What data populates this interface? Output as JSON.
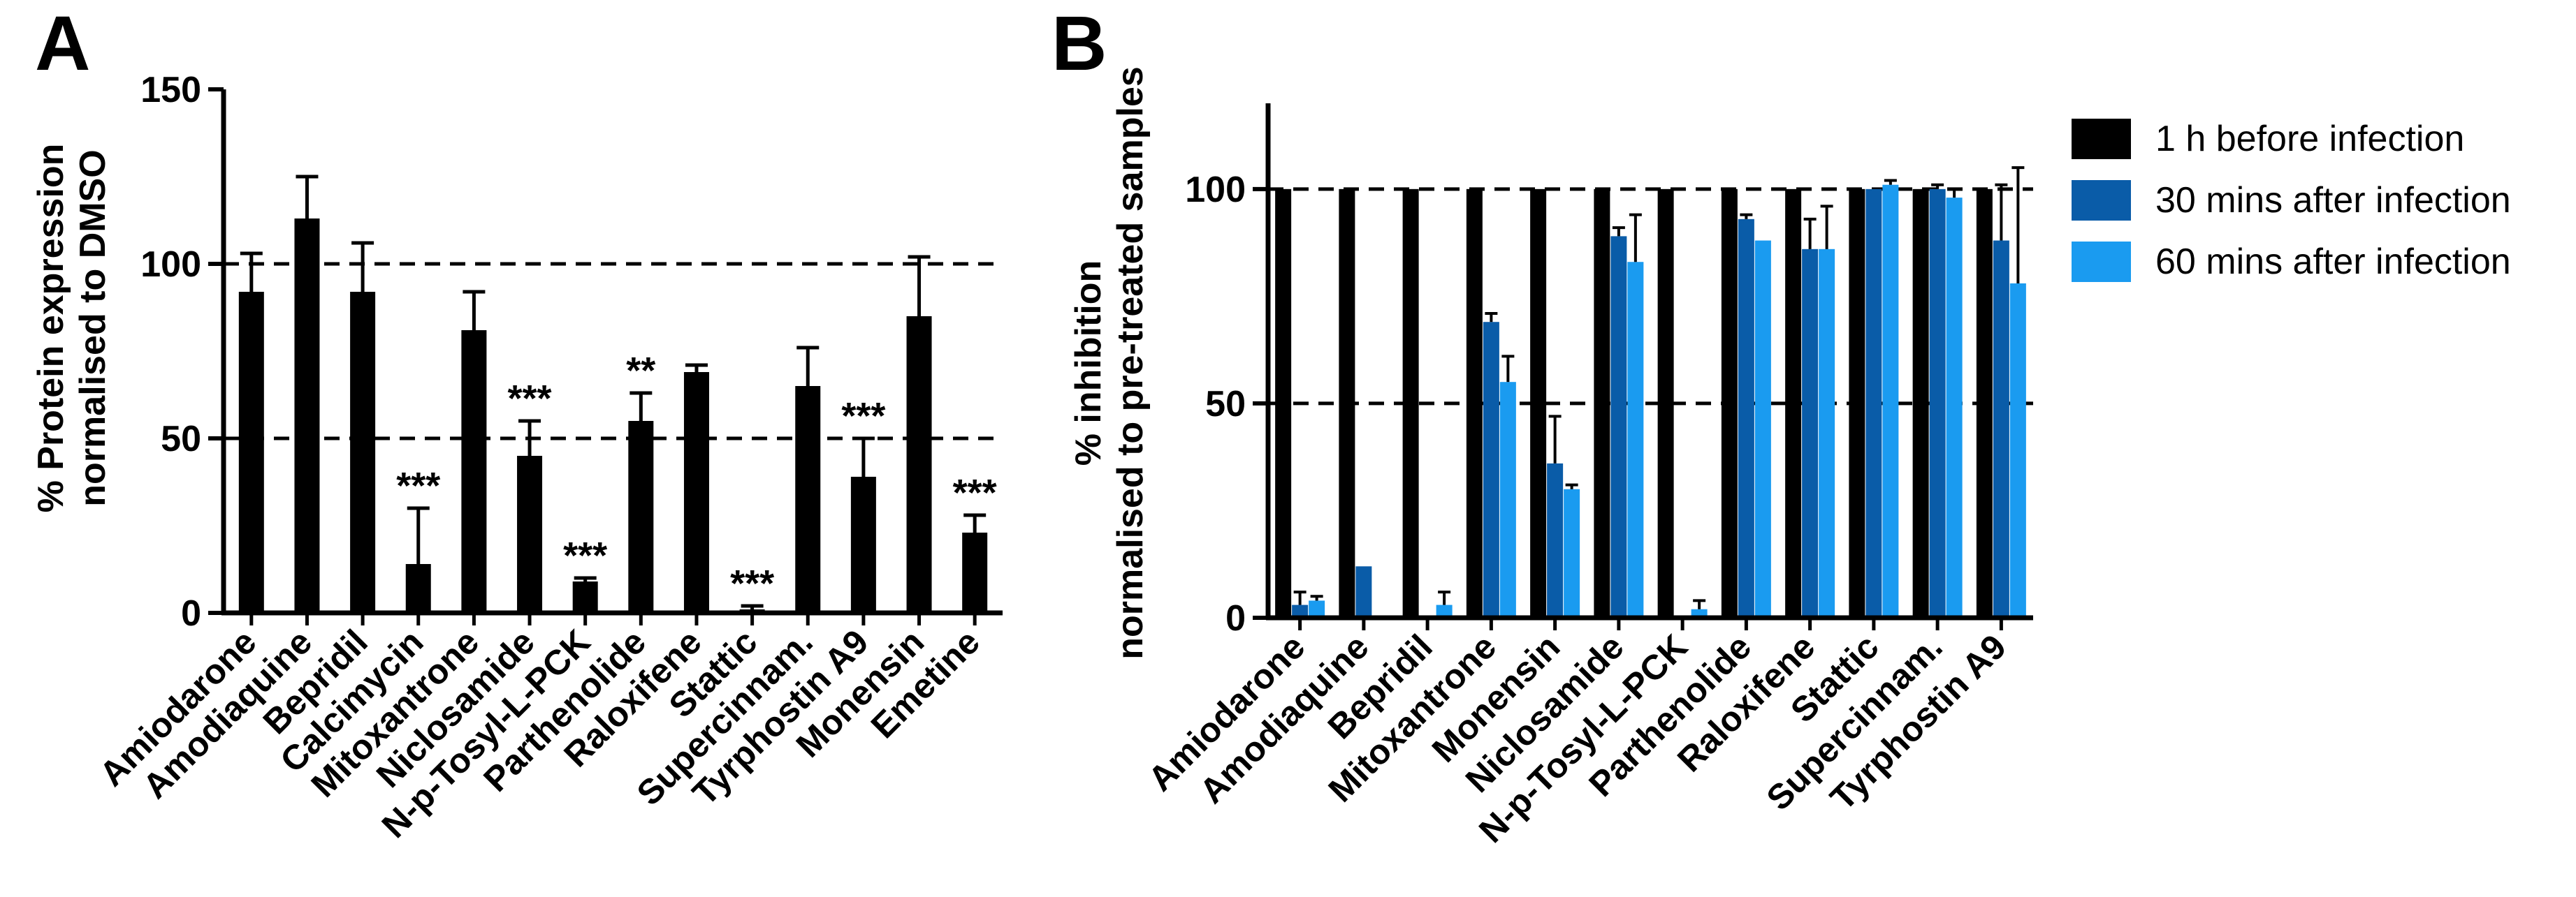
{
  "chart_data": [
    {
      "panel_label": "A",
      "type": "bar",
      "ylabel_line1": "% Protein expression",
      "ylabel_line2": "normalised to DMSO",
      "ylim": [
        0,
        150
      ],
      "yticks": [
        0,
        50,
        100,
        150
      ],
      "ytick_labels": [
        "0",
        "50",
        "100",
        "150"
      ],
      "reference_lines": [
        50,
        100
      ],
      "categories": [
        "Amiodarone",
        "Amodiaquine",
        "Bepridil",
        "Calcimycin",
        "Mitoxantrone",
        "Niclosamide",
        "N-p-Tosyl-L-PCK",
        "Parthenolide",
        "Raloxifene",
        "Stattic",
        "Supercinnam.",
        "Tyrphostin A9",
        "Monensin",
        "Emetine"
      ],
      "values": [
        92,
        113,
        92,
        14,
        81,
        45,
        9,
        55,
        69,
        1,
        65,
        39,
        85,
        23
      ],
      "errors": [
        11,
        12,
        14,
        16,
        11,
        10,
        1,
        8,
        2,
        1,
        11,
        11,
        17,
        5
      ],
      "significance": [
        "",
        "",
        "",
        "***",
        "",
        "***",
        "***",
        "**",
        "",
        "***",
        "",
        "***",
        "",
        "***"
      ],
      "color": "#000000"
    },
    {
      "panel_label": "B",
      "type": "bar",
      "ylabel_line1": "% inhibition",
      "ylabel_line2": "normalised to pre-treated samples",
      "ylim": [
        0,
        120
      ],
      "yticks": [
        0,
        50,
        100
      ],
      "ytick_labels": [
        "0",
        "50",
        "100"
      ],
      "reference_lines": [
        50,
        100
      ],
      "categories": [
        "Amiodarone",
        "Amodiaquine",
        "Bepridil",
        "Mitoxantrone",
        "Monensin",
        "Niclosamide",
        "N-p-Tosyl-L-PCK",
        "Parthenolide",
        "Raloxifene",
        "Stattic",
        "Supercinnam.",
        "Tyrphostin A9"
      ],
      "series": [
        {
          "name": "1 h before infection",
          "color": "#000000",
          "values": [
            100,
            100,
            100,
            100,
            100,
            100,
            100,
            100,
            100,
            100,
            100,
            100
          ],
          "errors": [
            0,
            0,
            0,
            0,
            0,
            0,
            0,
            0,
            0,
            0,
            0,
            0
          ]
        },
        {
          "name": "30 mins after infection",
          "color": "#0a5ca8",
          "values": [
            3,
            12,
            0,
            69,
            36,
            89,
            0,
            93,
            86,
            100,
            100,
            88
          ],
          "errors": [
            3,
            0,
            0,
            2,
            11,
            2,
            0,
            1,
            7,
            0,
            1,
            13
          ]
        },
        {
          "name": "60 mins after infection",
          "color": "#1a9bf0",
          "values": [
            4,
            0,
            3,
            55,
            30,
            83,
            2,
            88,
            86,
            101,
            98,
            78
          ],
          "errors": [
            1,
            0,
            3,
            6,
            1,
            11,
            2,
            0,
            10,
            1,
            2,
            27
          ]
        }
      ],
      "legend_position": "right"
    }
  ]
}
